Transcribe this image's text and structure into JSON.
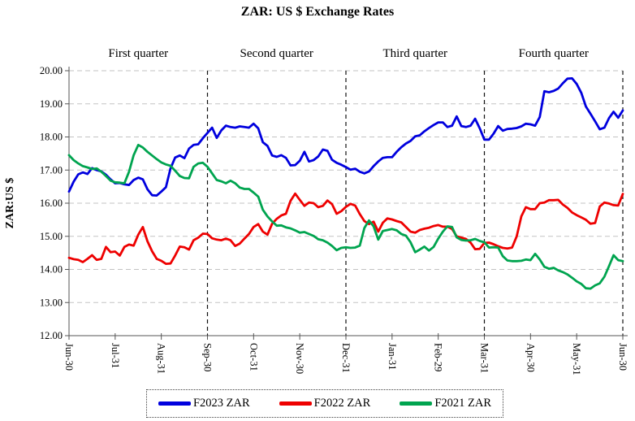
{
  "title": "ZAR: US $ Exchange Rates",
  "chart_data": {
    "type": "line",
    "title": "ZAR: US $ Exchange Rates",
    "grid": "horizontal dashed gridlines at every 1.00; dashed black vertical dividers at quarter ends",
    "legend_position": "bottom",
    "quarter_labels": [
      "First quarter",
      "Second quarter",
      "Third quarter",
      "Fourth quarter"
    ],
    "quarter_divider_ticks": [
      3,
      6,
      9,
      12
    ],
    "y_axis": {
      "title": "ZAR:US $",
      "min": 12,
      "max": 20,
      "tick_labels": [
        "12.00",
        "13.00",
        "14.00",
        "15.00",
        "16.00",
        "17.00",
        "18.00",
        "19.00",
        "20.00"
      ]
    },
    "x_axis": {
      "tick_labels": [
        "Jun-30",
        "Jul-31",
        "Aug-31",
        "Sep-30",
        "Oct-31",
        "Nov-30",
        "Dec-31",
        "Jan-31",
        "Feb-29",
        "Mar-31",
        "Apr-30",
        "May-31",
        "Jun-30"
      ],
      "label_rotation_deg": 90
    },
    "points_per_series": 121,
    "x_sampling": "uniform from first Jun-30 to final Jun-30",
    "series": [
      {
        "name": "F2023 ZAR",
        "color": "#0000DE",
        "values": [
          16.35,
          16.65,
          16.87,
          16.93,
          16.88,
          17.06,
          17.0,
          16.96,
          16.86,
          16.72,
          16.6,
          16.61,
          16.57,
          16.55,
          16.7,
          16.77,
          16.72,
          16.42,
          16.24,
          16.23,
          16.35,
          16.48,
          17.05,
          17.38,
          17.44,
          17.36,
          17.65,
          17.76,
          17.78,
          17.96,
          18.12,
          18.28,
          17.97,
          18.2,
          18.34,
          18.3,
          18.28,
          18.32,
          18.3,
          18.28,
          18.4,
          18.26,
          17.84,
          17.73,
          17.44,
          17.4,
          17.45,
          17.37,
          17.14,
          17.15,
          17.28,
          17.55,
          17.26,
          17.3,
          17.41,
          17.62,
          17.58,
          17.31,
          17.22,
          17.16,
          17.09,
          17.01,
          17.04,
          16.95,
          16.9,
          16.96,
          17.12,
          17.26,
          17.37,
          17.39,
          17.39,
          17.55,
          17.69,
          17.8,
          17.88,
          18.02,
          18.05,
          18.17,
          18.27,
          18.36,
          18.44,
          18.44,
          18.3,
          18.34,
          18.62,
          18.33,
          18.3,
          18.34,
          18.55,
          18.26,
          17.92,
          17.92,
          18.1,
          18.33,
          18.19,
          18.24,
          18.25,
          18.27,
          18.32,
          18.4,
          18.38,
          18.34,
          18.6,
          19.38,
          19.35,
          19.39,
          19.46,
          19.62,
          19.76,
          19.77,
          19.6,
          19.33,
          18.92,
          18.7,
          18.47,
          18.23,
          18.28,
          18.57,
          18.76,
          18.58,
          18.8
        ]
      },
      {
        "name": "F2022 ZAR",
        "color": "#EE0000",
        "values": [
          14.35,
          14.31,
          14.29,
          14.22,
          14.32,
          14.43,
          14.29,
          14.32,
          14.68,
          14.52,
          14.54,
          14.42,
          14.68,
          14.75,
          14.72,
          15.05,
          15.28,
          14.85,
          14.55,
          14.32,
          14.26,
          14.17,
          14.18,
          14.42,
          14.69,
          14.67,
          14.6,
          14.88,
          14.96,
          15.08,
          15.07,
          14.94,
          14.9,
          14.88,
          14.93,
          14.88,
          14.71,
          14.78,
          14.93,
          15.07,
          15.28,
          15.37,
          15.14,
          15.05,
          15.38,
          15.53,
          15.63,
          15.68,
          16.07,
          16.29,
          16.1,
          15.92,
          16.02,
          16.0,
          15.88,
          15.92,
          16.08,
          15.97,
          15.68,
          15.76,
          15.89,
          15.98,
          15.93,
          15.67,
          15.46,
          15.37,
          15.44,
          15.14,
          15.41,
          15.54,
          15.51,
          15.46,
          15.42,
          15.28,
          15.14,
          15.11,
          15.19,
          15.23,
          15.26,
          15.31,
          15.34,
          15.29,
          15.29,
          15.22,
          15.0,
          14.96,
          14.92,
          14.81,
          14.61,
          14.62,
          14.8,
          14.81,
          14.76,
          14.7,
          14.65,
          14.63,
          14.66,
          15.0,
          15.6,
          15.88,
          15.82,
          15.82,
          16.0,
          16.02,
          16.09,
          16.09,
          16.1,
          15.96,
          15.86,
          15.72,
          15.64,
          15.57,
          15.5,
          15.38,
          15.4,
          15.9,
          16.02,
          15.99,
          15.94,
          15.93,
          16.28
        ]
      },
      {
        "name": "F2021 ZAR",
        "color": "#00A44F",
        "values": [
          17.45,
          17.3,
          17.2,
          17.12,
          17.08,
          17.03,
          17.05,
          16.95,
          16.82,
          16.68,
          16.63,
          16.62,
          16.6,
          16.95,
          17.45,
          17.76,
          17.68,
          17.55,
          17.44,
          17.33,
          17.23,
          17.17,
          17.13,
          16.98,
          16.82,
          16.76,
          16.75,
          17.1,
          17.2,
          17.22,
          17.1,
          16.9,
          16.7,
          16.66,
          16.6,
          16.68,
          16.6,
          16.47,
          16.43,
          16.43,
          16.32,
          16.2,
          15.8,
          15.6,
          15.45,
          15.32,
          15.33,
          15.27,
          15.24,
          15.18,
          15.11,
          15.13,
          15.07,
          15.01,
          14.91,
          14.88,
          14.81,
          14.71,
          14.58,
          14.65,
          14.67,
          14.65,
          14.66,
          14.72,
          15.25,
          15.48,
          15.3,
          14.9,
          15.16,
          15.19,
          15.22,
          15.18,
          15.07,
          15.02,
          14.82,
          14.52,
          14.6,
          14.69,
          14.57,
          14.68,
          14.93,
          15.14,
          15.3,
          15.28,
          14.97,
          14.89,
          14.87,
          14.88,
          14.92,
          14.86,
          14.82,
          14.66,
          14.67,
          14.66,
          14.4,
          14.27,
          14.25,
          14.25,
          14.26,
          14.3,
          14.28,
          14.47,
          14.3,
          14.08,
          14.02,
          14.05,
          13.97,
          13.92,
          13.85,
          13.75,
          13.64,
          13.56,
          13.43,
          13.42,
          13.52,
          13.58,
          13.78,
          14.1,
          14.43,
          14.28,
          14.25
        ]
      }
    ]
  }
}
